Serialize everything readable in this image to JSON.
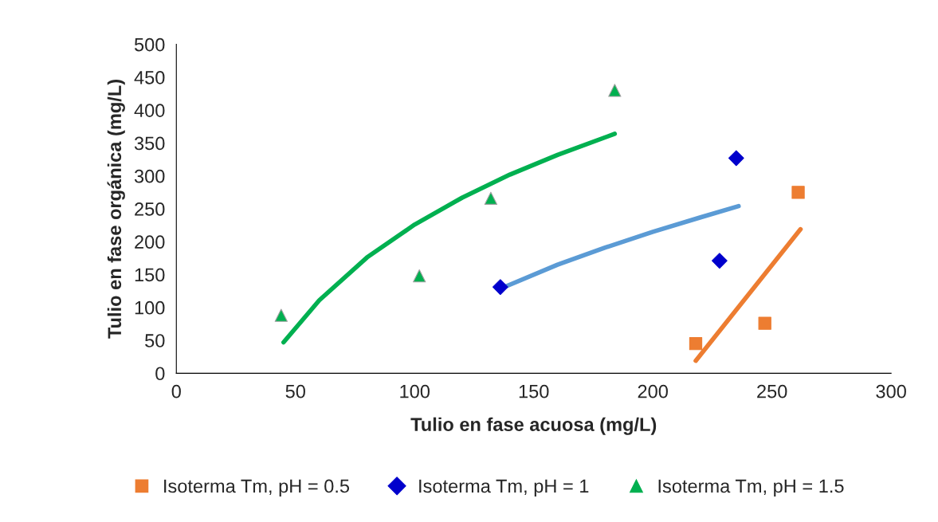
{
  "chart_data": {
    "type": "scatter",
    "xlabel": "Tulio en fase acuosa (mg/L)",
    "ylabel": "Tulio en fase orgánica (mg/L)",
    "xlim": [
      0,
      300
    ],
    "ylim": [
      0,
      500
    ],
    "xticks": [
      0,
      50,
      100,
      150,
      200,
      250,
      300
    ],
    "yticks": [
      0,
      50,
      100,
      150,
      200,
      250,
      300,
      350,
      400,
      450,
      500
    ],
    "grid": false,
    "legend": "bottom",
    "series": [
      {
        "name": "Isoterma Tm, pH = 0.5",
        "color": "#ed7d31",
        "marker": "square",
        "x": [
          218,
          247,
          261
        ],
        "values": [
          45,
          76,
          275
        ]
      },
      {
        "name": "Isoterma Tm, pH = 1",
        "color": "#0000cc",
        "marker": "diamond",
        "x": [
          136,
          228,
          235
        ],
        "values": [
          131,
          171,
          327
        ]
      },
      {
        "name": "Isoterma Tm, pH = 1.5",
        "color": "#00b050",
        "marker": "triangle",
        "x": [
          44,
          102,
          132,
          184
        ],
        "values": [
          88,
          148,
          266,
          430
        ]
      },
      {
        "type": "line",
        "color": "#ed7d31",
        "marker": "none",
        "x": [
          218,
          262
        ],
        "values": [
          19,
          219
        ]
      },
      {
        "type": "line",
        "color": "#5b9bd5",
        "marker": "none",
        "x": [
          137,
          160,
          180,
          200,
          220,
          236
        ],
        "values": [
          130,
          165,
          191,
          215,
          237,
          254
        ]
      },
      {
        "type": "line",
        "color": "#00b050",
        "marker": "none",
        "x": [
          45,
          60,
          80,
          100,
          120,
          140,
          160,
          184
        ],
        "values": [
          47,
          111,
          176,
          226,
          267,
          302,
          332,
          364
        ]
      }
    ]
  }
}
